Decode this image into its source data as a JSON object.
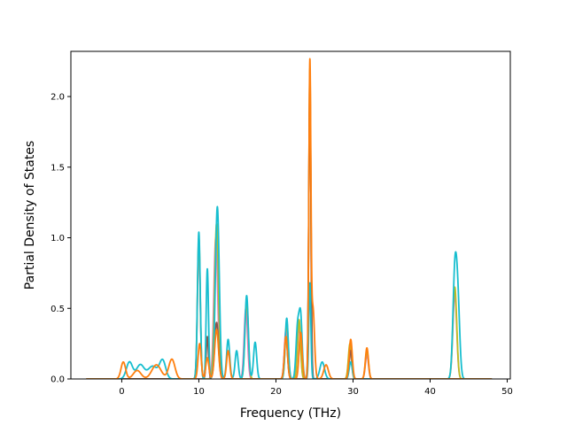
{
  "chart_data": {
    "type": "line",
    "xlabel": "Frequency (THz)",
    "ylabel": "Partial Density of States",
    "xlim": [
      -6.6,
      50.4
    ],
    "ylim": [
      0.0,
      2.32
    ],
    "x_ticks": [
      0,
      10,
      20,
      30,
      40,
      50
    ],
    "y_ticks": [
      0.0,
      0.5,
      1.0,
      1.5,
      2.0
    ],
    "x_tick_labels": [
      "0",
      "10",
      "20",
      "30",
      "40",
      "50"
    ],
    "y_tick_labels": [
      "0.0",
      "0.5",
      "1.0",
      "1.5",
      "2.0"
    ],
    "grid": false,
    "legend": "none",
    "x_range_data": [
      -4.6,
      48.0
    ],
    "colors": [
      "#1f77b4",
      "#ff7f0e",
      "#2ca02c",
      "#d62728",
      "#9467bd",
      "#8c564b",
      "#e377c2",
      "#7f7f7f",
      "#bcbd22",
      "#17becf"
    ],
    "series": [
      {
        "color": "#e377c2",
        "peaks": [
          [
            10.0,
            0.95,
            0.18
          ],
          [
            12.2,
            1.0,
            0.25
          ],
          [
            16.1,
            0.5,
            0.22
          ],
          [
            21.3,
            0.35,
            0.2
          ],
          [
            23.0,
            0.38,
            0.2
          ],
          [
            24.4,
            2.18,
            0.13
          ],
          [
            29.6,
            0.22,
            0.2
          ],
          [
            31.8,
            0.17,
            0.2
          ],
          [
            43.2,
            0.6,
            0.25
          ]
        ]
      },
      {
        "color": "#bcbd22",
        "peaks": [
          [
            10.0,
            1.0,
            0.18
          ],
          [
            12.3,
            1.1,
            0.25
          ],
          [
            16.2,
            0.55,
            0.22
          ],
          [
            21.4,
            0.4,
            0.2
          ],
          [
            23.0,
            0.42,
            0.2
          ],
          [
            24.4,
            2.2,
            0.13
          ],
          [
            29.6,
            0.25,
            0.2
          ],
          [
            31.8,
            0.2,
            0.2
          ],
          [
            43.2,
            0.65,
            0.25
          ]
        ]
      },
      {
        "color": "#8c564b",
        "peaks": [
          [
            11.1,
            0.3,
            0.15
          ],
          [
            12.3,
            0.4,
            0.25
          ],
          [
            21.3,
            0.3,
            0.2
          ],
          [
            24.4,
            2.05,
            0.14
          ],
          [
            29.7,
            0.2,
            0.2
          ]
        ]
      },
      {
        "color": "#17becf",
        "peaks": [
          [
            1.0,
            0.12,
            0.4
          ],
          [
            2.4,
            0.1,
            0.5
          ],
          [
            4.0,
            0.09,
            0.6
          ],
          [
            5.3,
            0.13,
            0.4
          ],
          [
            10.0,
            1.04,
            0.18
          ],
          [
            11.1,
            0.78,
            0.15
          ],
          [
            12.4,
            1.22,
            0.25
          ],
          [
            13.8,
            0.28,
            0.2
          ],
          [
            14.9,
            0.2,
            0.2
          ],
          [
            16.2,
            0.59,
            0.22
          ],
          [
            17.3,
            0.26,
            0.2
          ],
          [
            21.4,
            0.43,
            0.2
          ],
          [
            22.8,
            0.35,
            0.2
          ],
          [
            23.2,
            0.44,
            0.2
          ],
          [
            24.4,
            0.68,
            0.13
          ],
          [
            26.0,
            0.12,
            0.3
          ],
          [
            29.7,
            0.12,
            0.2
          ],
          [
            43.2,
            0.71,
            0.25
          ],
          [
            43.6,
            0.5,
            0.25
          ]
        ]
      },
      {
        "color": "#ff7f0e",
        "peaks": [
          [
            0.2,
            0.12,
            0.3
          ],
          [
            2.0,
            0.06,
            0.5
          ],
          [
            4.5,
            0.1,
            0.6
          ],
          [
            6.5,
            0.14,
            0.4
          ],
          [
            10.1,
            0.25,
            0.2
          ],
          [
            11.1,
            0.15,
            0.2
          ],
          [
            12.3,
            0.35,
            0.25
          ],
          [
            13.8,
            0.2,
            0.2
          ],
          [
            21.3,
            0.3,
            0.2
          ],
          [
            23.2,
            0.33,
            0.2
          ],
          [
            24.4,
            2.2,
            0.13
          ],
          [
            24.8,
            0.5,
            0.2
          ],
          [
            26.5,
            0.1,
            0.3
          ],
          [
            29.7,
            0.28,
            0.2
          ],
          [
            31.8,
            0.22,
            0.2
          ]
        ]
      }
    ]
  }
}
